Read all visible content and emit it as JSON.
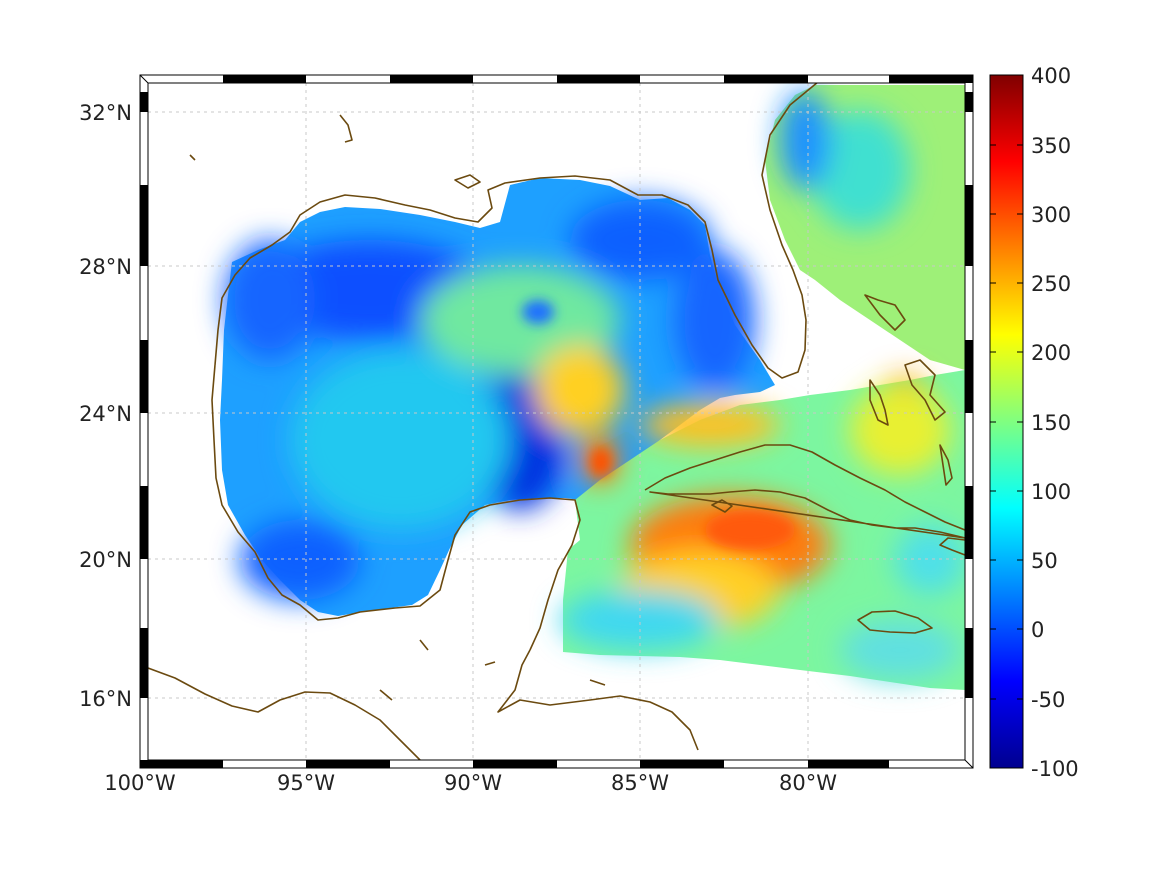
{
  "map": {
    "title": "",
    "lon_range": [
      -100,
      -75
    ],
    "lat_range": [
      14.2,
      33
    ],
    "x_ticks": [
      {
        "value": -100,
        "label": "100°W"
      },
      {
        "value": -95,
        "label": "95°W"
      },
      {
        "value": -90,
        "label": "90°W"
      },
      {
        "value": -85,
        "label": "85°W"
      },
      {
        "value": -80,
        "label": "80°W"
      }
    ],
    "y_ticks": [
      {
        "value": 32,
        "label": "32°N"
      },
      {
        "value": 28,
        "label": "28°N"
      },
      {
        "value": 24,
        "label": "24°N"
      },
      {
        "value": 20,
        "label": "20°N"
      },
      {
        "value": 16,
        "label": "16°N"
      }
    ],
    "grid": true,
    "coastline_color": "#6b4a10",
    "colormap": "jet"
  },
  "colorbar": {
    "min": -100,
    "max": 400,
    "ticks": [
      {
        "value": 400,
        "label": "400"
      },
      {
        "value": 350,
        "label": "350"
      },
      {
        "value": 300,
        "label": "300"
      },
      {
        "value": 250,
        "label": "250"
      },
      {
        "value": 200,
        "label": "200"
      },
      {
        "value": 150,
        "label": "150"
      },
      {
        "value": 100,
        "label": "100"
      },
      {
        "value": 50,
        "label": "50"
      },
      {
        "value": 0,
        "label": "0"
      },
      {
        "value": -50,
        "label": "-50"
      },
      {
        "value": -100,
        "label": "-100"
      }
    ],
    "colors": [
      "#00008f",
      "#0000ff",
      "#0080ff",
      "#00ffff",
      "#80ff80",
      "#ffff00",
      "#ff8000",
      "#ff0000",
      "#800000"
    ]
  }
}
